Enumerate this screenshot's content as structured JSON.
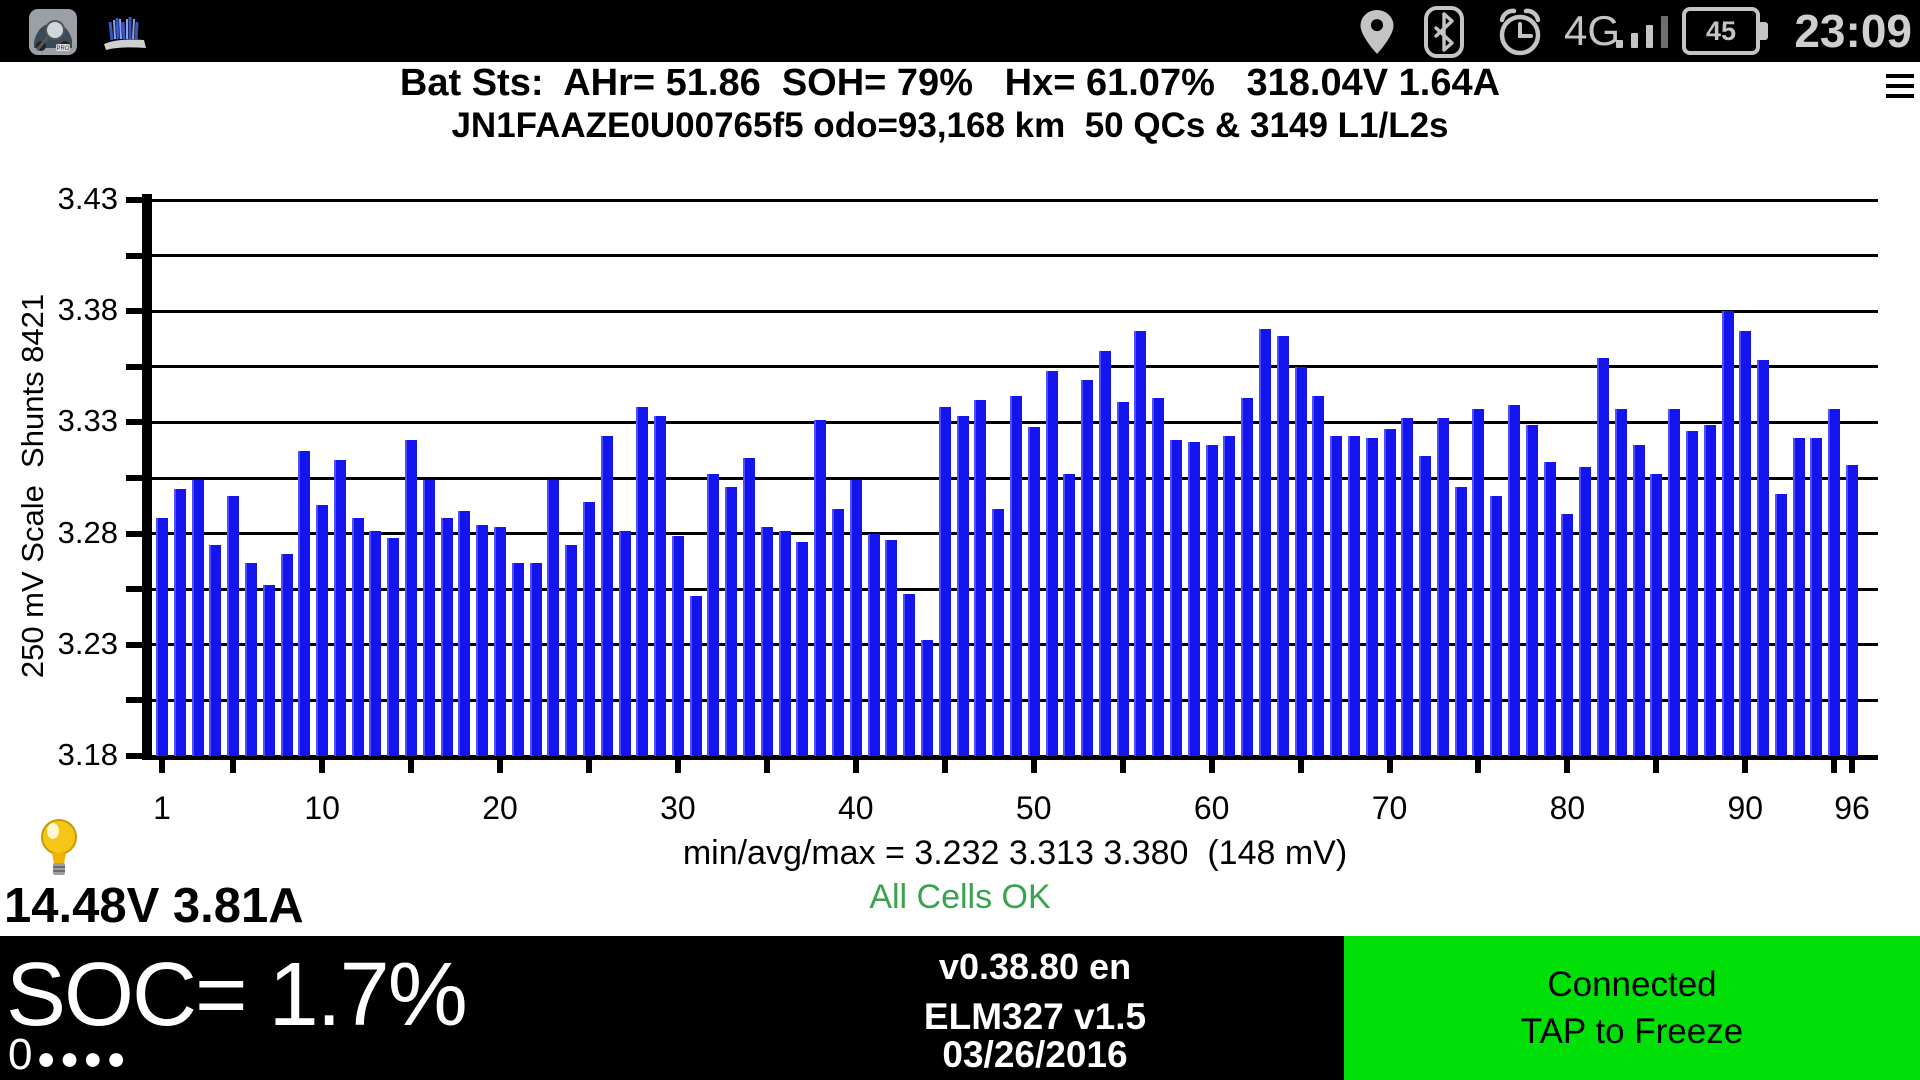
{
  "status_bar": {
    "time": "23:09",
    "battery_percent": "45",
    "network": "4G",
    "icons": [
      "leafspy-app-icon",
      "brush-app-icon",
      "location-pin-icon",
      "bluetooth-icon",
      "alarm-clock-icon",
      "signal-bars-icon",
      "battery-icon"
    ]
  },
  "header": {
    "line1": "Bat Sts:  AHr= 51.86  SOH= 79%   Hx= 61.07%   318.04V 1.64A",
    "line2": "JN1FAAZE0U00765f5 odo=93,168 km  50 QCs & 3149 L1/L2s"
  },
  "chart_data": {
    "type": "bar",
    "ylabel": "250 mV Scale  Shunts 8421",
    "ylim": [
      3.18,
      3.43
    ],
    "grid_step": 0.025,
    "ytick_labels": [
      "3.43",
      "3.38",
      "3.33",
      "3.28",
      "3.23",
      "3.18"
    ],
    "ytick_values": [
      3.43,
      3.38,
      3.33,
      3.28,
      3.23,
      3.18
    ],
    "xtick_labels": [
      "1",
      "10",
      "20",
      "30",
      "40",
      "50",
      "60",
      "70",
      "80",
      "90",
      "96"
    ],
    "xtick_cells": [
      1,
      10,
      20,
      30,
      40,
      50,
      60,
      70,
      80,
      90,
      96
    ],
    "bar_color": "#1414ee",
    "categories_note": "cell numbers 1-96",
    "values": [
      3.287,
      3.3,
      3.304,
      3.275,
      3.297,
      3.267,
      3.257,
      3.271,
      3.317,
      3.293,
      3.313,
      3.287,
      3.281,
      3.278,
      3.322,
      3.304,
      3.287,
      3.29,
      3.284,
      3.283,
      3.267,
      3.267,
      3.304,
      3.275,
      3.294,
      3.324,
      3.281,
      3.337,
      3.333,
      3.279,
      3.252,
      3.307,
      3.301,
      3.314,
      3.283,
      3.281,
      3.276,
      3.331,
      3.291,
      3.304,
      3.28,
      3.277,
      3.253,
      3.232,
      3.337,
      3.333,
      3.34,
      3.291,
      3.342,
      3.328,
      3.353,
      3.307,
      3.349,
      3.362,
      3.339,
      3.371,
      3.341,
      3.322,
      3.321,
      3.32,
      3.324,
      3.341,
      3.372,
      3.369,
      3.355,
      3.342,
      3.324,
      3.324,
      3.323,
      3.327,
      3.332,
      3.315,
      3.332,
      3.301,
      3.336,
      3.297,
      3.338,
      3.329,
      3.312,
      3.289,
      3.31,
      3.359,
      3.336,
      3.32,
      3.307,
      3.336,
      3.326,
      3.329,
      3.38,
      3.371,
      3.358,
      3.298,
      3.323,
      3.323,
      3.336,
      3.311
    ],
    "footer": "min/avg/max = 3.232 3.313 3.380  (148 mV)",
    "status_text": "All Cells OK",
    "status_color": "#3aa34d"
  },
  "readings": {
    "aux": "14.48V 3.81A",
    "soc": "SOC= 1.7%",
    "soc_gids_prefix": "0",
    "soc_dots": "●●●●"
  },
  "footer_bar": {
    "version": "v0.38.80 en",
    "adapter": "ELM327 v1.5",
    "date": "03/26/2016",
    "connection_line1": "Connected",
    "connection_line2": "TAP to Freeze",
    "connection_bg": "#00e008"
  }
}
